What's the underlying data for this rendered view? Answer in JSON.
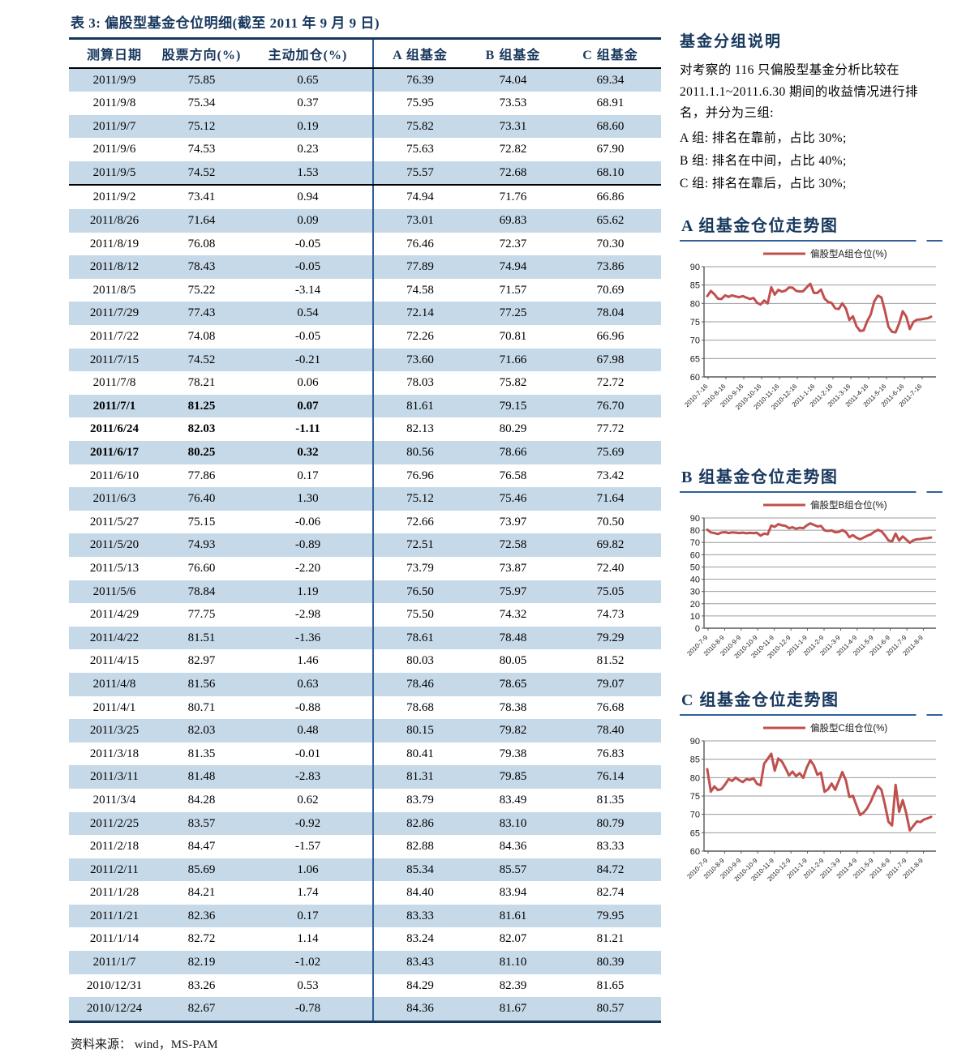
{
  "table": {
    "title": "表 3:  偏股型基金仓位明细(截至 2011 年 9 月 9 日)",
    "columns": [
      "测算日期",
      "股票方向(%)",
      "主动加仓(%)",
      "A 组基金",
      "B 组基金",
      "C 组基金"
    ],
    "bold_all_rows": 14,
    "bold_left_rows": 17,
    "rows": [
      [
        "2011/9/9",
        "75.85",
        "0.65",
        "76.39",
        "74.04",
        "69.34"
      ],
      [
        "2011/9/8",
        "75.34",
        "0.37",
        "75.95",
        "73.53",
        "68.91"
      ],
      [
        "2011/9/7",
        "75.12",
        "0.19",
        "75.82",
        "73.31",
        "68.60"
      ],
      [
        "2011/9/6",
        "74.53",
        "0.23",
        "75.63",
        "72.82",
        "67.90"
      ],
      [
        "2011/9/5",
        "74.52",
        "1.53",
        "75.57",
        "72.68",
        "68.10"
      ],
      [
        "2011/9/2",
        "73.41",
        "0.94",
        "74.94",
        "71.76",
        "66.86"
      ],
      [
        "2011/8/26",
        "71.64",
        "0.09",
        "73.01",
        "69.83",
        "65.62"
      ],
      [
        "2011/8/19",
        "76.08",
        "-0.05",
        "76.46",
        "72.37",
        "70.30"
      ],
      [
        "2011/8/12",
        "78.43",
        "-0.05",
        "77.89",
        "74.94",
        "73.86"
      ],
      [
        "2011/8/5",
        "75.22",
        "-3.14",
        "74.58",
        "71.57",
        "70.69"
      ],
      [
        "2011/7/29",
        "77.43",
        "0.54",
        "72.14",
        "77.25",
        "78.04"
      ],
      [
        "2011/7/22",
        "74.08",
        "-0.05",
        "72.26",
        "70.81",
        "66.96"
      ],
      [
        "2011/7/15",
        "74.52",
        "-0.21",
        "73.60",
        "71.66",
        "67.98"
      ],
      [
        "2011/7/8",
        "78.21",
        "0.06",
        "78.03",
        "75.82",
        "72.72"
      ],
      [
        "2011/7/1",
        "81.25",
        "0.07",
        "81.61",
        "79.15",
        "76.70"
      ],
      [
        "2011/6/24",
        "82.03",
        "-1.11",
        "82.13",
        "80.29",
        "77.72"
      ],
      [
        "2011/6/17",
        "80.25",
        "0.32",
        "80.56",
        "78.66",
        "75.69"
      ],
      [
        "2011/6/10",
        "77.86",
        "0.17",
        "76.96",
        "76.58",
        "73.42"
      ],
      [
        "2011/6/3",
        "76.40",
        "1.30",
        "75.12",
        "75.46",
        "71.64"
      ],
      [
        "2011/5/27",
        "75.15",
        "-0.06",
        "72.66",
        "73.97",
        "70.50"
      ],
      [
        "2011/5/20",
        "74.93",
        "-0.89",
        "72.51",
        "72.58",
        "69.82"
      ],
      [
        "2011/5/13",
        "76.60",
        "-2.20",
        "73.79",
        "73.87",
        "72.40"
      ],
      [
        "2011/5/6",
        "78.84",
        "1.19",
        "76.50",
        "75.97",
        "75.05"
      ],
      [
        "2011/4/29",
        "77.75",
        "-2.98",
        "75.50",
        "74.32",
        "74.73"
      ],
      [
        "2011/4/22",
        "81.51",
        "-1.36",
        "78.61",
        "78.48",
        "79.29"
      ],
      [
        "2011/4/15",
        "82.97",
        "1.46",
        "80.03",
        "80.05",
        "81.52"
      ],
      [
        "2011/4/8",
        "81.56",
        "0.63",
        "78.46",
        "78.65",
        "79.07"
      ],
      [
        "2011/4/1",
        "80.71",
        "-0.88",
        "78.68",
        "78.38",
        "76.68"
      ],
      [
        "2011/3/25",
        "82.03",
        "0.48",
        "80.15",
        "79.82",
        "78.40"
      ],
      [
        "2011/3/18",
        "81.35",
        "-0.01",
        "80.41",
        "79.38",
        "76.83"
      ],
      [
        "2011/3/11",
        "81.48",
        "-2.83",
        "81.31",
        "79.85",
        "76.14"
      ],
      [
        "2011/3/4",
        "84.28",
        "0.62",
        "83.79",
        "83.49",
        "81.35"
      ],
      [
        "2011/2/25",
        "83.57",
        "-0.92",
        "82.86",
        "83.10",
        "80.79"
      ],
      [
        "2011/2/18",
        "84.47",
        "-1.57",
        "82.88",
        "84.36",
        "83.33"
      ],
      [
        "2011/2/11",
        "85.69",
        "1.06",
        "85.34",
        "85.57",
        "84.72"
      ],
      [
        "2011/1/28",
        "84.21",
        "1.74",
        "84.40",
        "83.94",
        "82.74"
      ],
      [
        "2011/1/21",
        "82.36",
        "0.17",
        "83.33",
        "81.61",
        "79.95"
      ],
      [
        "2011/1/14",
        "82.72",
        "1.14",
        "83.24",
        "82.07",
        "81.21"
      ],
      [
        "2011/1/7",
        "82.19",
        "-1.02",
        "83.43",
        "81.10",
        "80.39"
      ],
      [
        "2010/12/31",
        "83.26",
        "0.53",
        "84.29",
        "82.39",
        "81.65"
      ],
      [
        "2010/12/24",
        "82.67",
        "-0.78",
        "84.36",
        "81.67",
        "80.57"
      ]
    ]
  },
  "source": "资料来源： wind，MS-PAM",
  "sidebar": {
    "heading": "基金分组说明",
    "description": "对考察的 116 只偏股型基金分析比较在 2011.1.1~2011.6.30 期间的收益情况进行排名，并分为三组:",
    "groups": [
      "A 组:  排名在靠前，占比 30%;",
      "B 组:  排名在中间，占比 40%;",
      "C 组:  排名在靠后，占比 30%;"
    ]
  },
  "colors": {
    "accent_navy": "#17375D",
    "stripe_blue": "#C6D9E8",
    "divider_blue": "#31609B",
    "line_red": "#C0504D",
    "grid_gray": "#9b9b9b"
  },
  "chart_data": [
    {
      "type": "line",
      "title": "A 组基金仓位走势图",
      "legend": "偏股型A组仓位(%)",
      "line_color": "#C0504D",
      "ylim": [
        60,
        90
      ],
      "yticks": [
        90,
        85,
        80,
        75,
        70,
        65,
        60
      ],
      "grid": true,
      "legend_position": "top",
      "x_ticklabels": [
        "2010-7-16",
        "2010-8-16",
        "2010-9-16",
        "2010-10-16",
        "2010-11-16",
        "2010-12-16",
        "2011-1-16",
        "2011-2-16",
        "2011-3-16",
        "2011-4-16",
        "2011-5-16",
        "2011-6-16",
        "2011-7-16"
      ],
      "values": [
        82.0,
        83.4,
        82.5,
        81.3,
        81.2,
        82.2,
        81.8,
        82.2,
        81.9,
        81.7,
        82.0,
        81.6,
        81.2,
        81.5,
        80.2,
        79.7,
        80.8,
        80.0,
        84.4,
        82.4,
        83.7,
        83.2,
        83.5,
        84.36,
        84.29,
        83.43,
        83.24,
        83.33,
        84.4,
        85.34,
        82.88,
        82.86,
        83.79,
        81.31,
        80.41,
        80.15,
        78.68,
        78.46,
        80.03,
        78.61,
        75.5,
        76.5,
        73.79,
        72.51,
        72.66,
        75.12,
        76.96,
        80.56,
        82.13,
        81.61,
        78.03,
        73.6,
        72.26,
        72.14,
        74.58,
        77.89,
        76.46,
        73.01,
        74.94,
        75.57,
        75.63,
        75.82,
        75.95,
        76.39
      ]
    },
    {
      "type": "line",
      "title": "B 组基金仓位走势图",
      "legend": "偏股型B组仓位(%)",
      "line_color": "#C0504D",
      "ylim": [
        0,
        90
      ],
      "yticks": [
        90,
        80,
        70,
        60,
        50,
        40,
        30,
        20,
        10,
        0
      ],
      "grid": true,
      "legend_position": "top",
      "x_ticklabels": [
        "2010-7-9",
        "2010-8-9",
        "2010-9-9",
        "2010-10-9",
        "2010-11-9",
        "2010-12-9",
        "2011-1-9",
        "2011-2-9",
        "2011-3-9",
        "2011-4-9",
        "2011-5-9",
        "2011-6-9",
        "2011-7-9",
        "2011-8-9"
      ],
      "values": [
        80.5,
        78.2,
        77.6,
        76.9,
        78.1,
        78.4,
        77.7,
        78.2,
        78.0,
        77.7,
        78.0,
        77.5,
        77.8,
        77.6,
        77.9,
        75.6,
        77.2,
        76.6,
        83.8,
        82.8,
        85.0,
        84.0,
        83.6,
        81.67,
        82.39,
        81.1,
        82.07,
        81.61,
        83.94,
        85.57,
        84.36,
        83.1,
        83.49,
        79.85,
        79.38,
        79.82,
        78.38,
        78.65,
        80.05,
        78.48,
        74.32,
        75.97,
        73.87,
        72.58,
        73.97,
        75.46,
        76.58,
        78.66,
        80.29,
        79.15,
        75.82,
        71.66,
        70.81,
        77.25,
        71.57,
        74.94,
        72.37,
        69.83,
        71.76,
        72.68,
        72.82,
        73.31,
        73.53,
        74.04
      ]
    },
    {
      "type": "line",
      "title": "C 组基金仓位走势图",
      "legend": "偏股型C组仓位(%)",
      "line_color": "#C0504D",
      "ylim": [
        60,
        90
      ],
      "yticks": [
        90,
        85,
        80,
        75,
        70,
        65,
        60
      ],
      "grid": true,
      "legend_position": "top",
      "x_ticklabels": [
        "2010-7-9",
        "2010-8-9",
        "2010-9-9",
        "2010-10-9",
        "2010-11-9",
        "2010-12-9",
        "2011-1-9",
        "2011-2-9",
        "2011-3-9",
        "2011-4-9",
        "2011-5-9",
        "2011-6-9",
        "2011-7-9",
        "2011-8-9"
      ],
      "values": [
        82.3,
        76.2,
        77.6,
        76.6,
        76.9,
        78.1,
        79.6,
        79.1,
        80.0,
        79.3,
        78.8,
        79.6,
        79.4,
        79.8,
        78.3,
        77.9,
        83.8,
        85.1,
        86.5,
        81.9,
        85.2,
        84.4,
        82.6,
        80.57,
        81.65,
        80.39,
        81.21,
        79.95,
        82.74,
        84.72,
        83.33,
        80.79,
        81.35,
        76.14,
        76.83,
        78.4,
        76.68,
        79.07,
        81.52,
        79.29,
        74.73,
        75.05,
        72.4,
        69.82,
        70.5,
        71.64,
        73.42,
        75.69,
        77.72,
        76.7,
        72.72,
        67.98,
        66.96,
        78.04,
        70.69,
        73.86,
        70.3,
        65.62,
        66.86,
        68.1,
        67.9,
        68.6,
        68.91,
        69.34
      ]
    }
  ]
}
